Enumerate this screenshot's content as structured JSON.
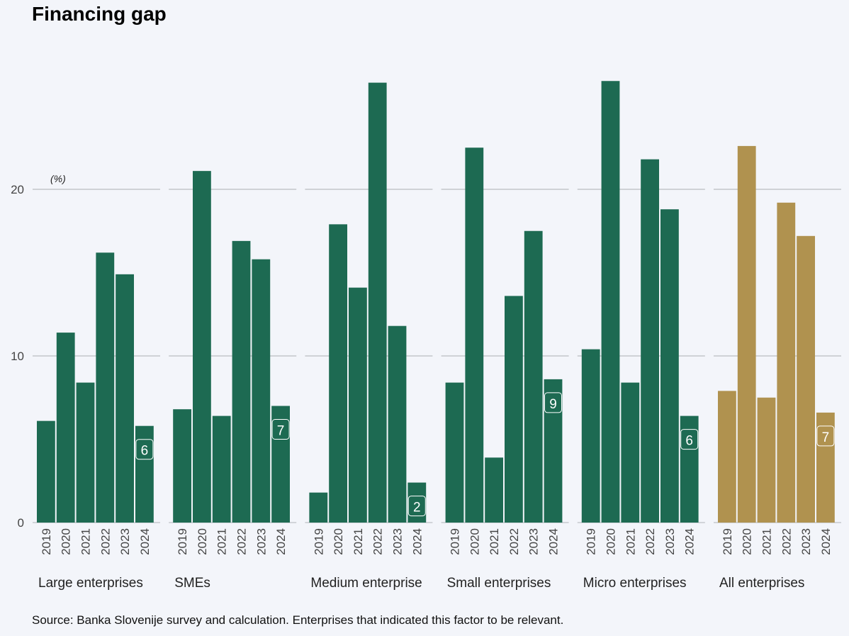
{
  "title": "Financing gap",
  "source": "Source: Banka Slovenije survey and calculation. Enterprises that indicated this factor to be relevant.",
  "chart_data": {
    "type": "bar",
    "title": "Financing gap",
    "unit_label": "(%)",
    "ylim": [
      0,
      28
    ],
    "yticks": [
      0,
      10,
      20
    ],
    "grid": true,
    "categories": [
      "2019",
      "2020",
      "2021",
      "2022",
      "2023",
      "2024"
    ],
    "panels": [
      {
        "name": "Large enterprises",
        "values": [
          6.1,
          11.4,
          8.4,
          16.2,
          14.9,
          5.8
        ],
        "label": "6",
        "color": "#1d6a52"
      },
      {
        "name": "SMEs",
        "values": [
          6.8,
          21.1,
          6.4,
          16.9,
          15.8,
          7.0
        ],
        "label": "7",
        "color": "#1d6a52"
      },
      {
        "name": "Medium enterprise",
        "values": [
          1.8,
          17.9,
          14.1,
          26.4,
          11.8,
          2.4
        ],
        "label": "2",
        "color": "#1d6a52"
      },
      {
        "name": "Small enterprises",
        "values": [
          8.4,
          22.5,
          3.9,
          13.6,
          17.5,
          8.6
        ],
        "label": "9",
        "color": "#1d6a52"
      },
      {
        "name": "Micro enterprises",
        "values": [
          10.4,
          26.5,
          8.4,
          21.8,
          18.8,
          6.4
        ],
        "label": "6",
        "color": "#1d6a52"
      },
      {
        "name": "All enterprises",
        "values": [
          7.9,
          22.6,
          7.5,
          19.2,
          17.2,
          6.6
        ],
        "label": "7",
        "color": "#b0924f"
      }
    ]
  }
}
